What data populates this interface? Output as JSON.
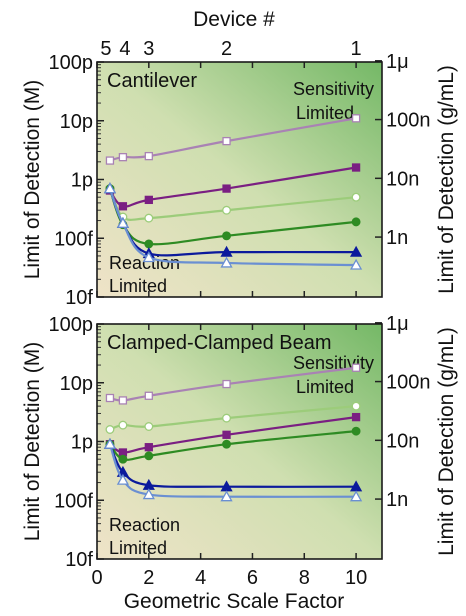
{
  "colors": {
    "purple_light": "#a982b4",
    "purple": "#7a1f82",
    "green_light": "#9ccc7a",
    "green": "#2e8b23",
    "blue": "#0b1a9c",
    "blue_light": "#6a8fd2",
    "bg_beige": "#ede0c4",
    "bg_green": "#7bbd6c"
  },
  "top_axis": {
    "label": "Device #",
    "ticks": [
      {
        "label": "5",
        "x": 0.5
      },
      {
        "label": "4",
        "x": 1
      },
      {
        "label": "3",
        "x": 2
      },
      {
        "label": "2",
        "x": 5
      },
      {
        "label": "1",
        "x": 10
      }
    ]
  },
  "x_axis": {
    "label": "Geometric Scale Factor",
    "range": [
      0,
      11
    ],
    "ticks": [
      "0",
      "2",
      "4",
      "6",
      "8",
      "10"
    ]
  },
  "chart_data": [
    {
      "type": "line",
      "title": "Cantilever",
      "ylabel": "Limit of Detection (M)",
      "y2label": "Limit of Detection (g/mL)",
      "yscale": "log",
      "ylim": [
        1e-14,
        1e-10
      ],
      "y_ticks": [
        "10f",
        "100f",
        "1p",
        "10p",
        "100p"
      ],
      "y2_ticks": [
        "1n",
        "10n",
        "100n",
        "1μ"
      ],
      "annotations": [
        "Sensitivity Limited",
        "Reaction Limited"
      ],
      "series": [
        {
          "marker": "open-square",
          "color": "#a982b4",
          "x": [
            0.5,
            1,
            2,
            5,
            10
          ],
          "y": [
            2.1e-12,
            2.4e-12,
            2.5e-12,
            4.5e-12,
            1.1e-11
          ]
        },
        {
          "marker": "filled-square",
          "color": "#7a1f82",
          "x": [
            0.5,
            1,
            2,
            5,
            10
          ],
          "y": [
            6.5e-13,
            3.5e-13,
            4.5e-13,
            7e-13,
            1.6e-12
          ]
        },
        {
          "marker": "open-circle",
          "color": "#9ccc7a",
          "x": [
            0.5,
            1,
            2,
            5,
            10
          ],
          "y": [
            7e-13,
            2.3e-13,
            2.2e-13,
            3e-13,
            5e-13
          ]
        },
        {
          "marker": "filled-circle",
          "color": "#2e8b23",
          "x": [
            0.5,
            1,
            2,
            5,
            10
          ],
          "y": [
            7e-13,
            1.7e-13,
            8e-14,
            1.1e-13,
            1.9e-13
          ]
        },
        {
          "marker": "filled-triangle",
          "color": "#0b1a9c",
          "x": [
            0.5,
            1,
            2,
            5,
            10
          ],
          "y": [
            7e-13,
            1.8e-13,
            5.5e-14,
            5.8e-14,
            5.8e-14
          ]
        },
        {
          "marker": "open-triangle",
          "color": "#6a8fd2",
          "x": [
            0.5,
            1,
            2,
            5,
            10
          ],
          "y": [
            7e-13,
            1.8e-13,
            4.7e-14,
            3.8e-14,
            3.5e-14
          ]
        }
      ]
    },
    {
      "type": "line",
      "title": "Clamped-Clamped Beam",
      "ylabel": "Limit of Detection (M)",
      "y2label": "Limit of Detection (g/mL)",
      "yscale": "log",
      "ylim": [
        1e-14,
        1e-10
      ],
      "y_ticks": [
        "10f",
        "100f",
        "1p",
        "10p",
        "100p"
      ],
      "y2_ticks": [
        "1n",
        "10n",
        "100n",
        "1μ"
      ],
      "annotations": [
        "Sensitivity Limited",
        "Reaction Limited"
      ],
      "series": [
        {
          "marker": "open-square",
          "color": "#a982b4",
          "x": [
            0.5,
            1,
            2,
            5,
            10
          ],
          "y": [
            5.5e-12,
            5e-12,
            6e-12,
            9.5e-12,
            1.8e-11
          ]
        },
        {
          "marker": "filled-square",
          "color": "#7a1f82",
          "x": [
            0.5,
            1,
            2,
            5,
            10
          ],
          "y": [
            9e-13,
            6.5e-13,
            8e-13,
            1.3e-12,
            2.6e-12
          ]
        },
        {
          "marker": "open-circle",
          "color": "#9ccc7a",
          "x": [
            0.5,
            1,
            2,
            5,
            10
          ],
          "y": [
            1.6e-12,
            1.9e-12,
            1.8e-12,
            2.5e-12,
            4e-12
          ]
        },
        {
          "marker": "filled-circle",
          "color": "#2e8b23",
          "x": [
            0.5,
            1,
            2,
            5,
            10
          ],
          "y": [
            9e-13,
            5e-13,
            5.7e-13,
            9e-13,
            1.5e-12
          ]
        },
        {
          "marker": "filled-triangle",
          "color": "#0b1a9c",
          "x": [
            0.5,
            1,
            2,
            5,
            10
          ],
          "y": [
            9e-13,
            3e-13,
            1.8e-13,
            1.7e-13,
            1.7e-13
          ]
        },
        {
          "marker": "open-triangle",
          "color": "#6a8fd2",
          "x": [
            0.5,
            1,
            2,
            5,
            10
          ],
          "y": [
            9e-13,
            2.2e-13,
            1.25e-13,
            1.15e-13,
            1.15e-13
          ]
        }
      ]
    }
  ]
}
